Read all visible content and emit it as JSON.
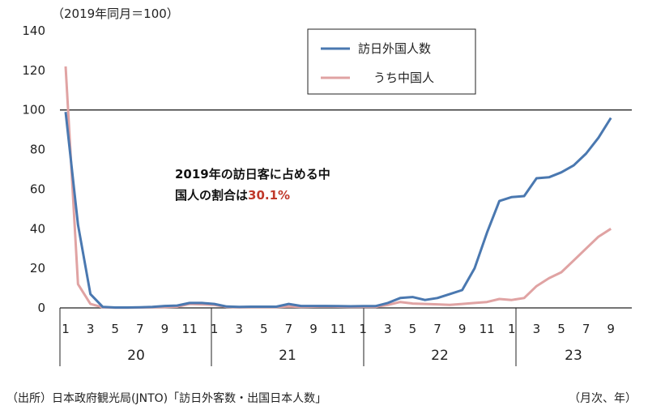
{
  "chart_data": {
    "type": "line",
    "ylabel": "（2019年同月＝100）",
    "ylim": [
      0,
      140
    ],
    "yticks": [
      0,
      20,
      40,
      60,
      80,
      100,
      120,
      140
    ],
    "reference_line": 100,
    "x": [
      "2020-01",
      "2020-02",
      "2020-03",
      "2020-04",
      "2020-05",
      "2020-06",
      "2020-07",
      "2020-08",
      "2020-09",
      "2020-10",
      "2020-11",
      "2020-12",
      "2021-01",
      "2021-02",
      "2021-03",
      "2021-04",
      "2021-05",
      "2021-06",
      "2021-07",
      "2021-08",
      "2021-09",
      "2021-10",
      "2021-11",
      "2021-12",
      "2022-01",
      "2022-02",
      "2022-03",
      "2022-04",
      "2022-05",
      "2022-06",
      "2022-07",
      "2022-08",
      "2022-09",
      "2022-10",
      "2022-11",
      "2022-12",
      "2023-01",
      "2023-02",
      "2023-03",
      "2023-04",
      "2023-05",
      "2023-06",
      "2023-07",
      "2023-08",
      "2023-09"
    ],
    "month_tick_labels": [
      "1",
      "3",
      "5",
      "7",
      "9",
      "11",
      "1",
      "3",
      "5",
      "7",
      "9",
      "11",
      "1",
      "3",
      "5",
      "7",
      "9",
      "11",
      "1",
      "3",
      "5",
      "7",
      "9"
    ],
    "year_labels": [
      "20",
      "21",
      "22",
      "23"
    ],
    "xlabel": "（月次、年）",
    "series": [
      {
        "name": "訪日外国人数",
        "color": "#4a78b0",
        "values": [
          99,
          42,
          7,
          0.5,
          0.2,
          0.2,
          0.3,
          0.5,
          1,
          1.2,
          2.5,
          2.5,
          2,
          0.7,
          0.5,
          0.6,
          0.6,
          0.6,
          2,
          1,
          1,
          1,
          0.9,
          0.8,
          0.9,
          0.9,
          2.5,
          5,
          5.5,
          4,
          5,
          7,
          9,
          20,
          38,
          54,
          56,
          56.5,
          65.5,
          66,
          68.5,
          72,
          78,
          86,
          96
        ]
      },
      {
        "name": "うち中国人",
        "color": "#e0a3a3",
        "values": [
          122,
          12,
          2,
          0.3,
          0.1,
          0.1,
          0.2,
          0.3,
          0.4,
          0.6,
          2,
          1.8,
          1.5,
          0.5,
          0.3,
          0.4,
          0.4,
          0.4,
          0.7,
          0.5,
          0.6,
          0.7,
          0.6,
          0.5,
          0.5,
          0.5,
          1.5,
          3,
          2.2,
          2,
          1.8,
          1.5,
          2,
          2.5,
          3,
          4.5,
          4,
          5,
          11,
          15,
          18,
          24,
          30,
          36,
          40
        ]
      }
    ],
    "annotation": {
      "line1": "2019年の訪日客に占める中",
      "line2_prefix": "国人の割合は",
      "line2_value": "30.1%"
    }
  },
  "source": "（出所）日本政府観光局(JNTO)「訪日外客数・出国日本人数」"
}
